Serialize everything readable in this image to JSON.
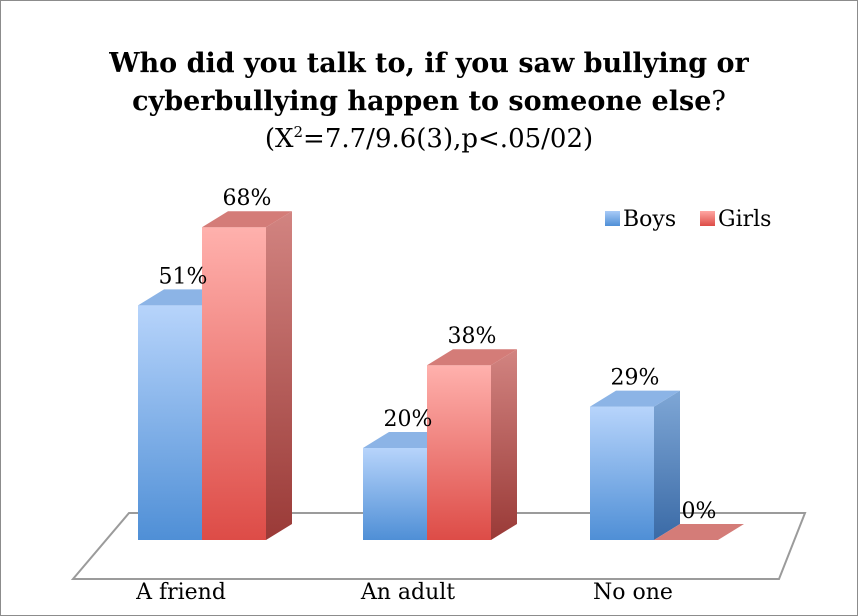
{
  "chart_data": {
    "type": "bar",
    "title": "Who did you talk to, if you saw bullying or cyberbullying happen to someone else?",
    "title_line1": "Who did you talk to, if you saw bullying or",
    "title_line2_bold": "cyberbullying happen to someone else",
    "title_line2_end": "?",
    "subtitle_parts": {
      "a": "(X",
      "sup": "2",
      "b": "=7.7/9.6(3),p<.05/02)"
    },
    "categories": [
      "A friend",
      "An adult",
      "No one"
    ],
    "series": [
      {
        "name": "Boys",
        "values": [
          51,
          20,
          29
        ],
        "labels": [
          "51%",
          "20%",
          "29%"
        ],
        "color": "#5b9bd5"
      },
      {
        "name": "Girls",
        "values": [
          68,
          38,
          0
        ],
        "labels": [
          "68%",
          "38%",
          "0%"
        ],
        "color": "#e05a55"
      }
    ],
    "unit": "%",
    "ylim": [
      0,
      80
    ],
    "grid": false,
    "legend": "top-right",
    "three_d": true
  }
}
